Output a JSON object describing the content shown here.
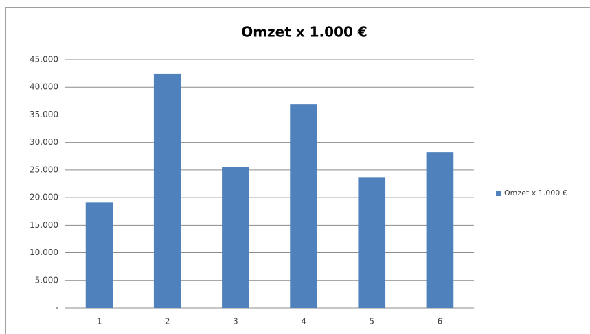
{
  "chart_data": {
    "type": "bar",
    "title": "Omzet x 1.000 €",
    "categories": [
      "1",
      "2",
      "3",
      "4",
      "5",
      "6"
    ],
    "series": [
      {
        "name": "Omzet x 1.000 €",
        "color": "#4f81bd",
        "values": [
          19100,
          42400,
          25500,
          36900,
          23700,
          28200
        ]
      }
    ],
    "ylim": [
      0,
      45000
    ],
    "yticks": [
      {
        "value": 0,
        "label": "-"
      },
      {
        "value": 5000,
        "label": "5.000"
      },
      {
        "value": 10000,
        "label": "10.000"
      },
      {
        "value": 15000,
        "label": "15.000"
      },
      {
        "value": 20000,
        "label": "20.000"
      },
      {
        "value": 25000,
        "label": "25.000"
      },
      {
        "value": 30000,
        "label": "30.000"
      },
      {
        "value": 35000,
        "label": "35.000"
      },
      {
        "value": 40000,
        "label": "40.000"
      },
      {
        "value": 45000,
        "label": "45.000"
      }
    ],
    "grid": true,
    "legend": "right"
  }
}
